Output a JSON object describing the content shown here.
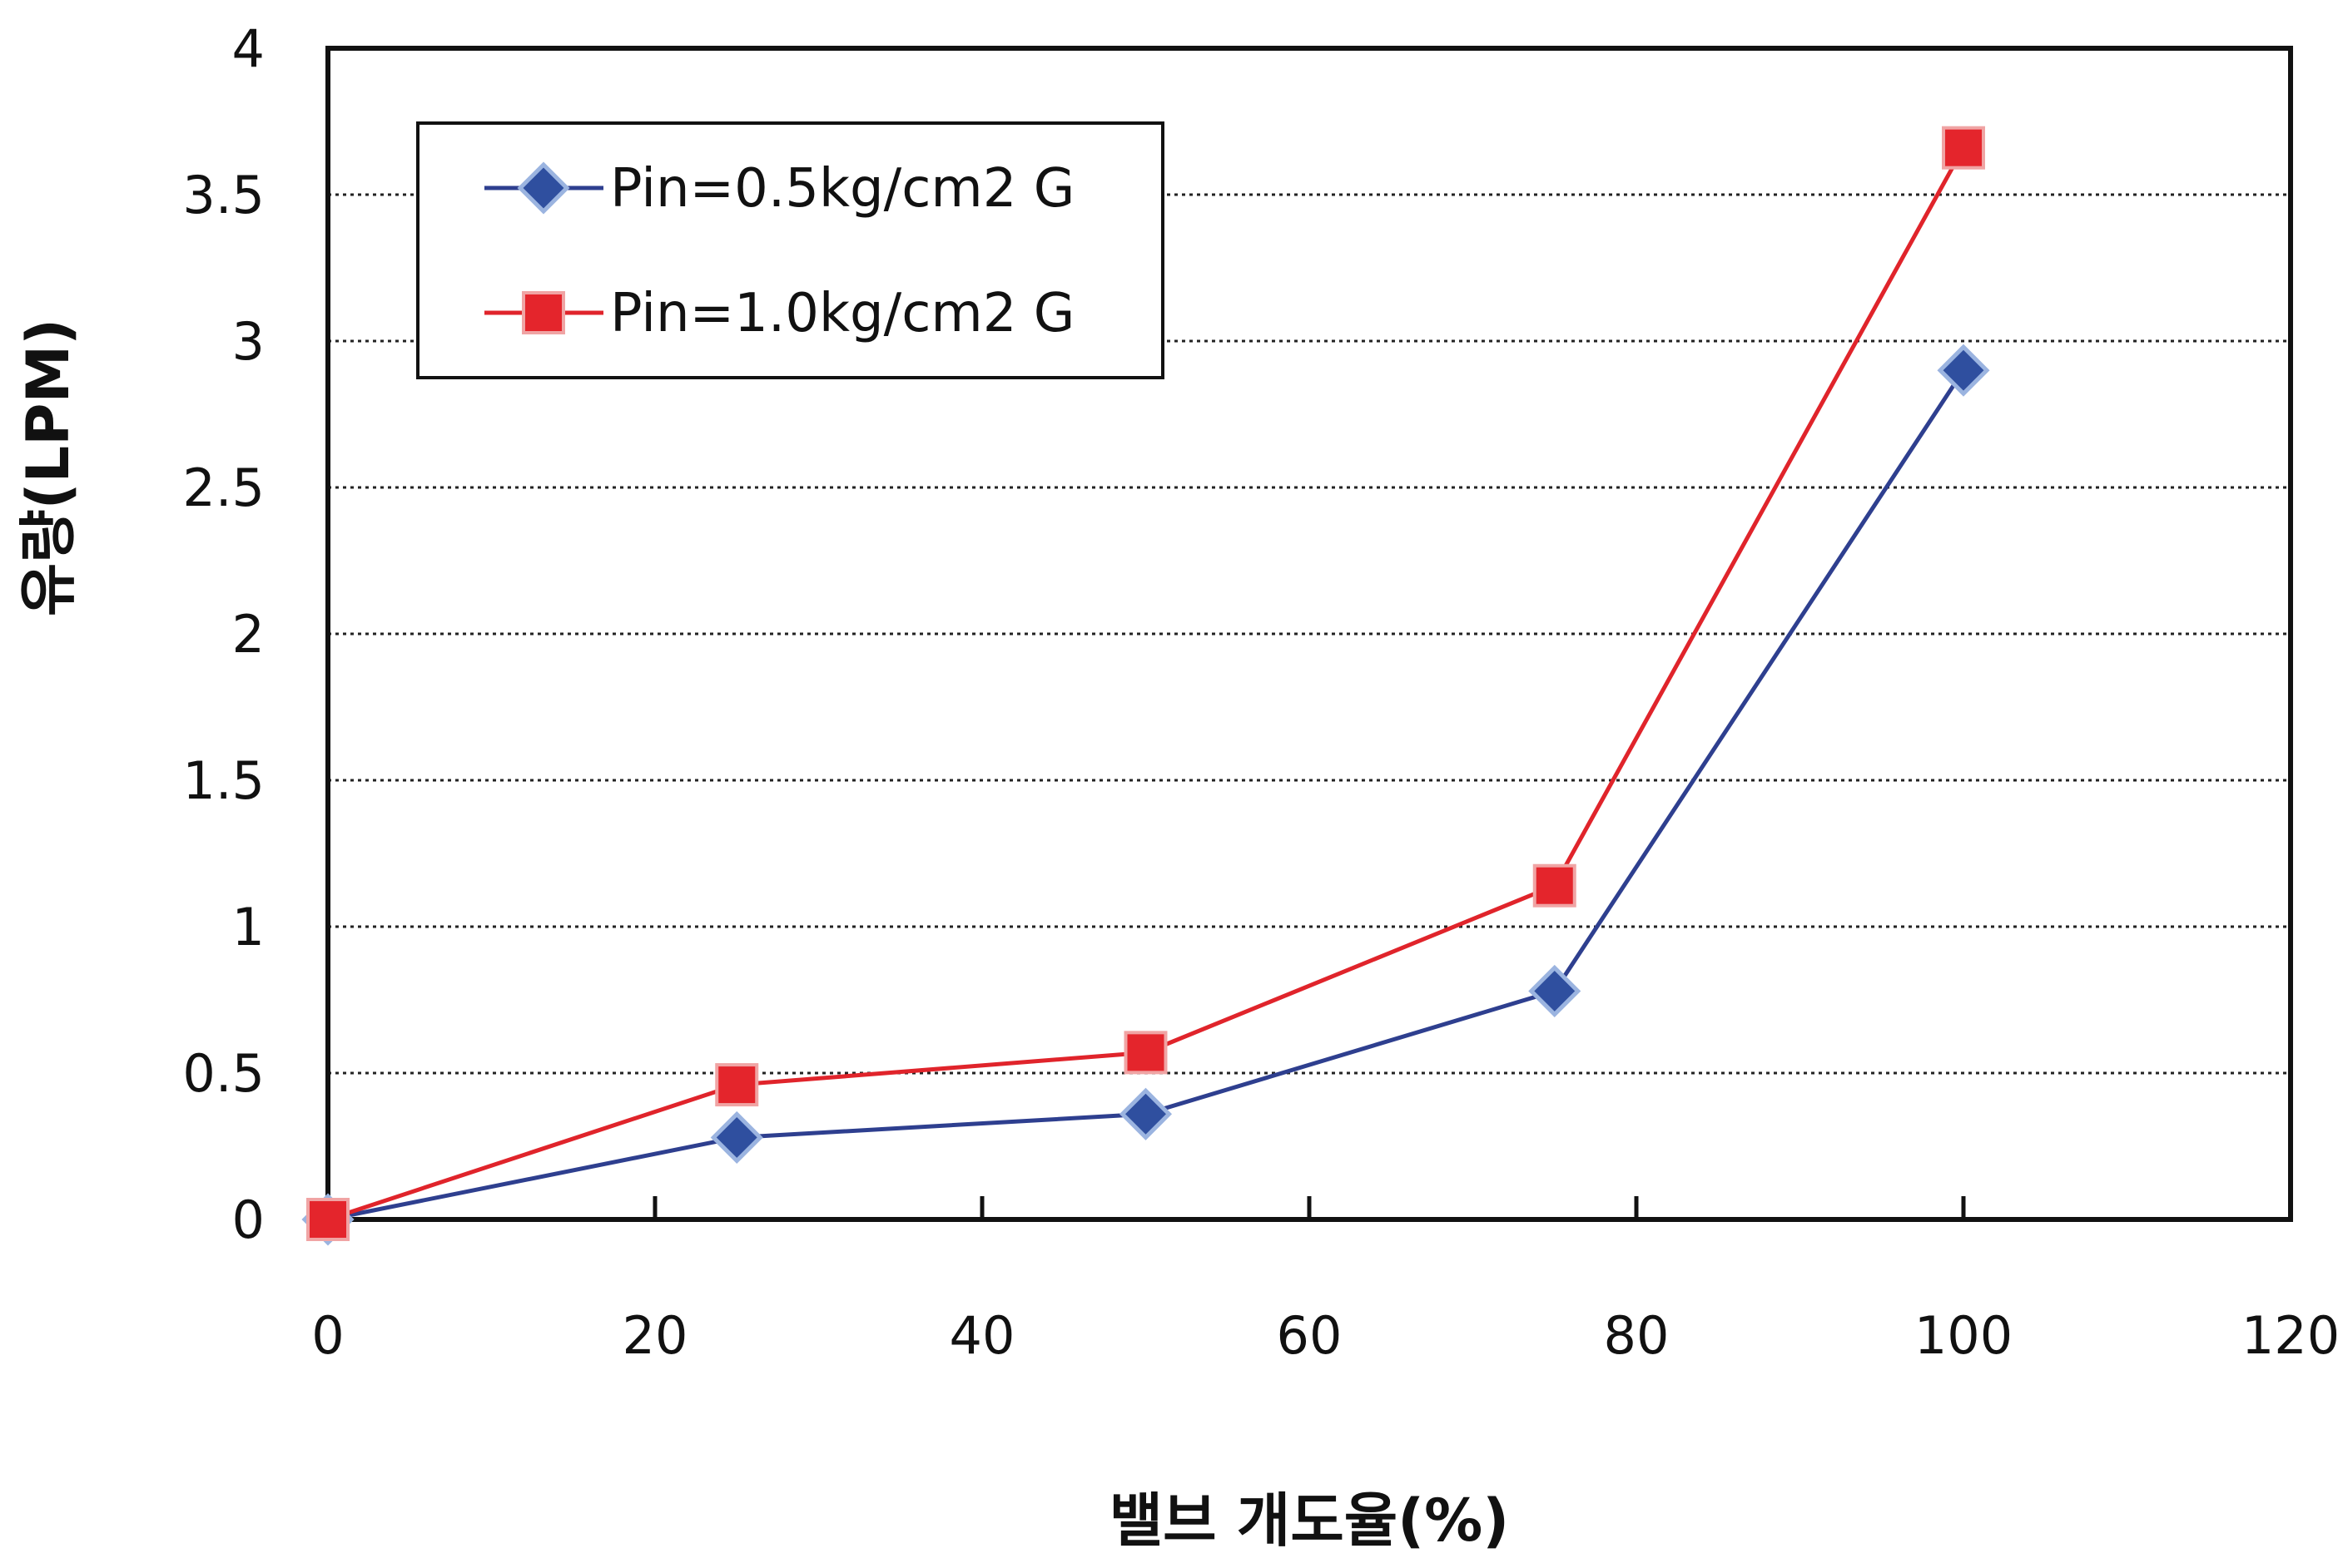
{
  "chart_data": {
    "type": "line",
    "xlabel": "밸브 개도율(%)",
    "ylabel": "유량(LPM)",
    "xlim": [
      0,
      120
    ],
    "ylim": [
      0,
      4
    ],
    "x_ticks": [
      0,
      20,
      40,
      60,
      80,
      100,
      120
    ],
    "y_ticks": [
      0,
      0.5,
      1,
      1.5,
      2,
      2.5,
      3,
      3.5,
      4
    ],
    "y_tick_labels": [
      "0",
      "0.5",
      "1",
      "1.5",
      "2",
      "2.5",
      "3",
      "3.5",
      "4"
    ],
    "grid": "horizontal-dotted",
    "legend_position": "top-left",
    "series": [
      {
        "name": "Pin=0.5kg/cm2 G",
        "color": "#2e3f8f",
        "marker": "diamond",
        "marker_color": "#2f4f9f",
        "x": [
          0,
          25,
          50,
          75,
          100
        ],
        "y": [
          0,
          0.28,
          0.36,
          0.78,
          2.9
        ]
      },
      {
        "name": "Pin=1.0kg/cm2 G",
        "color": "#e0242b",
        "marker": "square",
        "marker_color": "#e4252c",
        "x": [
          0,
          25,
          50,
          75,
          100
        ],
        "y": [
          0,
          0.46,
          0.57,
          1.14,
          3.66
        ]
      }
    ]
  }
}
